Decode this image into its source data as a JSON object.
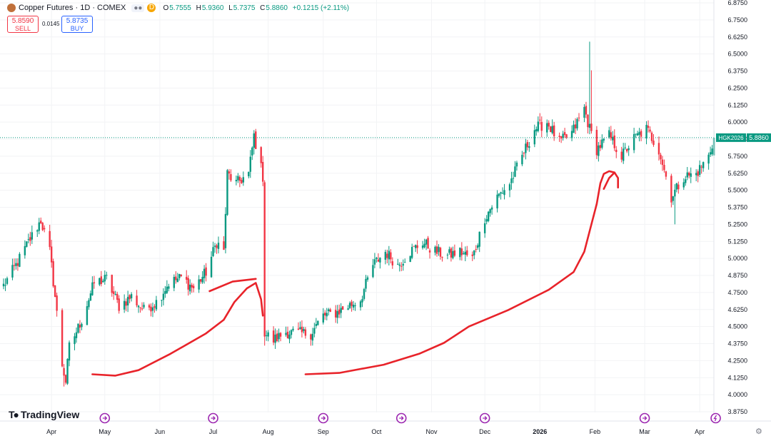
{
  "header": {
    "title": "Copper Futures · 1D · COMEX",
    "exchange_badge": "D",
    "open_label": "O",
    "open": "5.7555",
    "high_label": "H",
    "high": "5.9360",
    "low_label": "L",
    "low": "5.7375",
    "close_label": "C",
    "close": "5.8860",
    "change": "+0.1215 (+2.11%)"
  },
  "trade": {
    "sell_price": "5.8590",
    "sell_label": "SELL",
    "spread": "0.0145",
    "buy_price": "5.8735",
    "buy_label": "BUY"
  },
  "logo": {
    "text": "TradingView"
  },
  "colors": {
    "up": "#089981",
    "down": "#f23645",
    "drawing": "#e8232a",
    "accent": "#2962ff",
    "event": "#9c27b0"
  },
  "chart_data": {
    "type": "candlestick",
    "ylim": [
      3.875,
      6.875
    ],
    "y_ticks": [
      "3.8750",
      "4.0000",
      "4.1250",
      "4.2500",
      "4.3750",
      "4.5000",
      "4.6250",
      "4.7500",
      "4.8750",
      "5.0000",
      "5.1250",
      "5.2500",
      "5.3750",
      "5.5000",
      "5.6250",
      "5.7500",
      "5.8750",
      "6.0000",
      "6.1250",
      "6.2500",
      "6.3750",
      "6.5000",
      "6.6250",
      "6.7500",
      "6.8750"
    ],
    "x_ticks": [
      {
        "label": "Apr",
        "date": "2025-04-01"
      },
      {
        "label": "May",
        "date": "2025-05-01"
      },
      {
        "label": "Jun",
        "date": "2025-06-01"
      },
      {
        "label": "Jul",
        "date": "2025-07-01"
      },
      {
        "label": "Aug",
        "date": "2025-08-01"
      },
      {
        "label": "Sep",
        "date": "2025-09-01"
      },
      {
        "label": "Oct",
        "date": "2025-10-01"
      },
      {
        "label": "Nov",
        "date": "2025-11-01"
      },
      {
        "label": "Dec",
        "date": "2025-12-01"
      },
      {
        "label": "2026",
        "date": "2026-01-01"
      },
      {
        "label": "Feb",
        "date": "2026-02-01"
      },
      {
        "label": "Mar",
        "date": "2026-03-01"
      },
      {
        "label": "Apr",
        "date": "2026-04-01"
      }
    ],
    "last_price": {
      "label": "HGK2026",
      "value": "5.8860"
    },
    "events": [
      {
        "date": "2025-05-01",
        "type": "dividend"
      },
      {
        "date": "2025-07-01",
        "type": "dividend"
      },
      {
        "date": "2025-09-01",
        "type": "dividend"
      },
      {
        "date": "2025-10-15",
        "type": "dividend"
      },
      {
        "date": "2025-12-01",
        "type": "dividend"
      },
      {
        "date": "2026-03-01",
        "type": "dividend"
      },
      {
        "date": "2026-04-10",
        "type": "split"
      }
    ],
    "anchors": [
      [
        "2025-03-05",
        4.8
      ],
      [
        "2025-03-12",
        4.95
      ],
      [
        "2025-03-19",
        5.12
      ],
      [
        "2025-03-26",
        5.28
      ],
      [
        "2025-03-31",
        5.05
      ],
      [
        "2025-04-03",
        4.72
      ],
      [
        "2025-04-07",
        4.22
      ],
      [
        "2025-04-09",
        4.1
      ],
      [
        "2025-04-11",
        4.35
      ],
      [
        "2025-04-18",
        4.55
      ],
      [
        "2025-04-25",
        4.82
      ],
      [
        "2025-05-02",
        4.85
      ],
      [
        "2025-05-09",
        4.65
      ],
      [
        "2025-05-16",
        4.72
      ],
      [
        "2025-05-23",
        4.62
      ],
      [
        "2025-05-30",
        4.68
      ],
      [
        "2025-06-06",
        4.82
      ],
      [
        "2025-06-13",
        4.86
      ],
      [
        "2025-06-20",
        4.78
      ],
      [
        "2025-06-27",
        4.9
      ],
      [
        "2025-07-03",
        5.12
      ],
      [
        "2025-07-07",
        5.05
      ],
      [
        "2025-07-09",
        5.62
      ],
      [
        "2025-07-14",
        5.55
      ],
      [
        "2025-07-21",
        5.62
      ],
      [
        "2025-07-24",
        5.9
      ],
      [
        "2025-07-29",
        5.6
      ],
      [
        "2025-07-30",
        4.45
      ],
      [
        "2025-08-04",
        4.4
      ],
      [
        "2025-08-11",
        4.46
      ],
      [
        "2025-08-18",
        4.45
      ],
      [
        "2025-08-25",
        4.45
      ],
      [
        "2025-09-01",
        4.58
      ],
      [
        "2025-09-08",
        4.6
      ],
      [
        "2025-09-15",
        4.65
      ],
      [
        "2025-09-22",
        4.7
      ],
      [
        "2025-09-29",
        4.95
      ],
      [
        "2025-10-06",
        5.05
      ],
      [
        "2025-10-13",
        4.95
      ],
      [
        "2025-10-20",
        5.05
      ],
      [
        "2025-10-27",
        5.12
      ],
      [
        "2025-11-03",
        5.05
      ],
      [
        "2025-11-10",
        5.02
      ],
      [
        "2025-11-17",
        5.05
      ],
      [
        "2025-11-24",
        5.0
      ],
      [
        "2025-12-01",
        5.3
      ],
      [
        "2025-12-08",
        5.45
      ],
      [
        "2025-12-15",
        5.55
      ],
      [
        "2025-12-22",
        5.75
      ],
      [
        "2025-12-29",
        5.95
      ],
      [
        "2026-01-05",
        6.0
      ],
      [
        "2026-01-12",
        5.85
      ],
      [
        "2026-01-19",
        5.92
      ],
      [
        "2026-01-26",
        6.1
      ],
      [
        "2026-01-29",
        5.95
      ],
      [
        "2026-02-02",
        5.8
      ],
      [
        "2026-02-09",
        5.9
      ],
      [
        "2026-02-16",
        5.75
      ],
      [
        "2026-02-23",
        5.88
      ],
      [
        "2026-03-02",
        5.95
      ],
      [
        "2026-03-09",
        5.8
      ],
      [
        "2026-03-16",
        5.45
      ],
      [
        "2026-03-23",
        5.6
      ],
      [
        "2026-03-30",
        5.62
      ],
      [
        "2026-04-06",
        5.75
      ],
      [
        "2026-04-09",
        5.886
      ]
    ],
    "spikes": [
      {
        "date": "2025-04-08",
        "low": 4.06
      },
      {
        "date": "2025-07-25",
        "high": 5.95
      },
      {
        "date": "2025-07-30",
        "low": 4.36
      },
      {
        "date": "2026-01-29",
        "high": 6.59
      },
      {
        "date": "2026-01-30",
        "high": 6.38
      },
      {
        "date": "2026-03-18",
        "low": 5.25
      }
    ],
    "annotations": [
      {
        "type": "freehand",
        "points": [
          [
            "2025-04-24",
            4.15
          ],
          [
            "2025-05-07",
            4.14
          ],
          [
            "2025-05-20",
            4.18
          ],
          [
            "2025-06-07",
            4.3
          ],
          [
            "2025-06-27",
            4.45
          ],
          [
            "2025-07-07",
            4.55
          ],
          [
            "2025-07-13",
            4.68
          ],
          [
            "2025-07-20",
            4.78
          ],
          [
            "2025-07-25",
            4.82
          ],
          [
            "2025-07-28",
            4.7
          ],
          [
            "2025-07-29",
            4.58
          ]
        ]
      },
      {
        "type": "freehand",
        "points": [
          [
            "2025-06-29",
            4.76
          ],
          [
            "2025-07-12",
            4.83
          ],
          [
            "2025-07-25",
            4.85
          ]
        ]
      },
      {
        "type": "freehand",
        "points": [
          [
            "2025-08-22",
            4.15
          ],
          [
            "2025-09-10",
            4.16
          ],
          [
            "2025-10-05",
            4.22
          ],
          [
            "2025-10-25",
            4.3
          ],
          [
            "2025-11-08",
            4.38
          ],
          [
            "2025-11-22",
            4.5
          ],
          [
            "2025-12-14",
            4.62
          ],
          [
            "2026-01-06",
            4.77
          ],
          [
            "2026-01-20",
            4.9
          ],
          [
            "2026-01-26",
            5.05
          ],
          [
            "2026-01-30",
            5.25
          ],
          [
            "2026-02-02",
            5.4
          ],
          [
            "2026-02-04",
            5.55
          ],
          [
            "2026-02-06",
            5.62
          ],
          [
            "2026-02-09",
            5.64
          ],
          [
            "2026-02-12",
            5.63
          ],
          [
            "2026-02-14",
            5.59
          ],
          [
            "2026-02-14",
            5.52
          ]
        ]
      },
      {
        "type": "freehand",
        "points": [
          [
            "2026-02-06",
            5.51
          ],
          [
            "2026-02-09",
            5.59
          ],
          [
            "2026-02-12",
            5.63
          ]
        ]
      }
    ]
  }
}
